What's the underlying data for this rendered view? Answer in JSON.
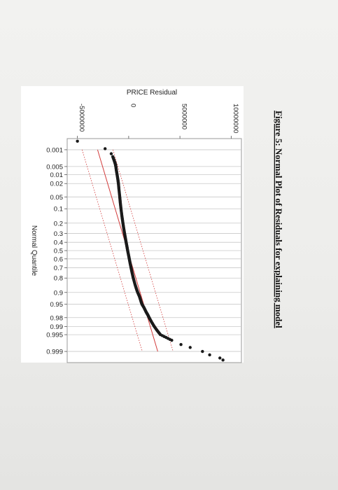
{
  "figure_caption": "Figure 5: Normal Plot of Residuals for explaining model",
  "chart_data": {
    "type": "scatter",
    "title": "",
    "ylabel": "PRICE Residual",
    "xlabel": "Normal Quantile",
    "y_ticks": [
      {
        "value": -5000000,
        "label": "-5000000"
      },
      {
        "value": 0,
        "label": "0"
      },
      {
        "value": 5000000,
        "label": "5000000"
      },
      {
        "value": 10000000,
        "label": "10000000"
      }
    ],
    "x_ticks": [
      {
        "value": 0.001,
        "label": "0.001"
      },
      {
        "value": 0.005,
        "label": "0.005"
      },
      {
        "value": 0.01,
        "label": "0.01"
      },
      {
        "value": 0.02,
        "label": "0.02"
      },
      {
        "value": 0.05,
        "label": "0.05"
      },
      {
        "value": 0.1,
        "label": "0.1"
      },
      {
        "value": 0.2,
        "label": "0.2"
      },
      {
        "value": 0.3,
        "label": "0.3"
      },
      {
        "value": 0.4,
        "label": "0.4"
      },
      {
        "value": 0.5,
        "label": "0.5"
      },
      {
        "value": 0.6,
        "label": "0.6"
      },
      {
        "value": 0.7,
        "label": "0.7"
      },
      {
        "value": 0.8,
        "label": "0.8"
      },
      {
        "value": 0.9,
        "label": "0.9"
      },
      {
        "value": 0.95,
        "label": "0.95"
      },
      {
        "value": 0.98,
        "label": "0.98"
      },
      {
        "value": 0.99,
        "label": "0.99"
      },
      {
        "value": 0.995,
        "label": "0.995"
      },
      {
        "value": 0.999,
        "label": "0.999"
      }
    ],
    "ylim": [
      -6000000,
      11000000
    ],
    "xlim_quantile": [
      0.0003,
      0.9997
    ],
    "grid": true,
    "points": [
      {
        "p": 0.0004,
        "y": -5000000
      },
      {
        "p": 0.0009,
        "y": -2300000
      },
      {
        "p": 0.0015,
        "y": -1700000
      },
      {
        "p": 0.002,
        "y": -1550000
      },
      {
        "p": 0.003,
        "y": -1400000
      },
      {
        "p": 0.004,
        "y": -1300000
      },
      {
        "p": 0.005,
        "y": -1250000
      },
      {
        "p": 0.007,
        "y": -1200000
      },
      {
        "p": 0.01,
        "y": -1130000
      },
      {
        "p": 0.015,
        "y": -1050000
      },
      {
        "p": 0.02,
        "y": -1000000
      },
      {
        "p": 0.03,
        "y": -950000
      },
      {
        "p": 0.05,
        "y": -870000
      },
      {
        "p": 0.07,
        "y": -820000
      },
      {
        "p": 0.1,
        "y": -750000
      },
      {
        "p": 0.15,
        "y": -650000
      },
      {
        "p": 0.2,
        "y": -560000
      },
      {
        "p": 0.25,
        "y": -480000
      },
      {
        "p": 0.3,
        "y": -400000
      },
      {
        "p": 0.35,
        "y": -320000
      },
      {
        "p": 0.4,
        "y": -250000
      },
      {
        "p": 0.45,
        "y": -170000
      },
      {
        "p": 0.5,
        "y": -100000
      },
      {
        "p": 0.55,
        "y": -20000
      },
      {
        "p": 0.6,
        "y": 60000
      },
      {
        "p": 0.65,
        "y": 140000
      },
      {
        "p": 0.7,
        "y": 230000
      },
      {
        "p": 0.75,
        "y": 330000
      },
      {
        "p": 0.8,
        "y": 450000
      },
      {
        "p": 0.85,
        "y": 620000
      },
      {
        "p": 0.88,
        "y": 760000
      },
      {
        "p": 0.9,
        "y": 880000
      },
      {
        "p": 0.92,
        "y": 1050000
      },
      {
        "p": 0.94,
        "y": 1200000
      },
      {
        "p": 0.95,
        "y": 1300000
      },
      {
        "p": 0.96,
        "y": 1500000
      },
      {
        "p": 0.97,
        "y": 1700000
      },
      {
        "p": 0.975,
        "y": 1850000
      },
      {
        "p": 0.98,
        "y": 2000000
      },
      {
        "p": 0.985,
        "y": 2200000
      },
      {
        "p": 0.99,
        "y": 2500000
      },
      {
        "p": 0.993,
        "y": 2800000
      },
      {
        "p": 0.995,
        "y": 3100000
      },
      {
        "p": 0.997,
        "y": 4200000
      },
      {
        "p": 0.998,
        "y": 5100000
      },
      {
        "p": 0.9985,
        "y": 6000000
      },
      {
        "p": 0.999,
        "y": 7200000
      },
      {
        "p": 0.9993,
        "y": 7900000
      },
      {
        "p": 0.9995,
        "y": 8900000
      },
      {
        "p": 0.9996,
        "y": 9200000
      }
    ],
    "reference_line": {
      "type": "normal",
      "mean": -100000,
      "sd": 950000
    }
  }
}
